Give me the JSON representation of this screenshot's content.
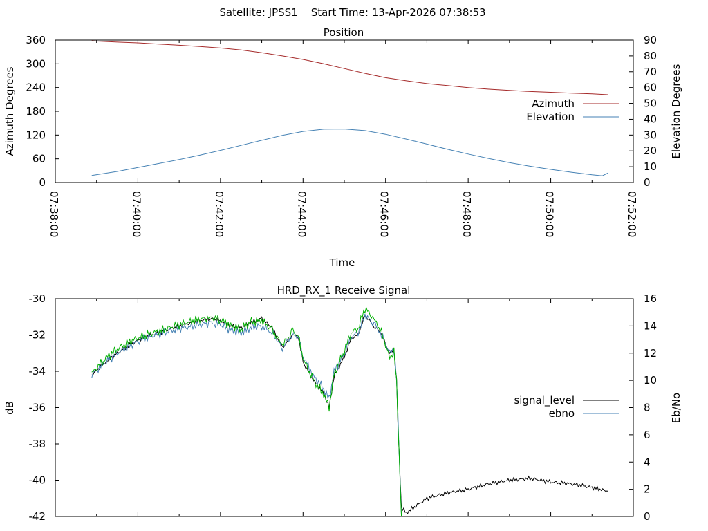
{
  "figure": {
    "header": "Satellite: JPSS1    Start Time: 13-Apr-2026 07:38:53"
  },
  "chart_data": [
    {
      "type": "line",
      "title": "Position",
      "xlabel": "Time",
      "ylabel": "Azimuth Degrees",
      "y2label": "Elevation Degrees",
      "x_type": "time",
      "xlim": [
        "07:38:00",
        "07:52:00"
      ],
      "xticks": [
        "07:38:00",
        "07:40:00",
        "07:42:00",
        "07:44:00",
        "07:46:00",
        "07:48:00",
        "07:50:00",
        "07:52:00"
      ],
      "ylim": [
        0,
        360
      ],
      "yticks": [
        0,
        60,
        120,
        180,
        240,
        300,
        360
      ],
      "y2lim": [
        0,
        90
      ],
      "y2ticks": [
        0,
        10,
        20,
        30,
        40,
        50,
        60,
        70,
        80,
        90
      ],
      "grid": false,
      "legend_position": "right",
      "series": [
        {
          "name": "Azimuth",
          "axis": "y",
          "color": "#a52a2a",
          "x": [
            "07:38:53",
            "07:39:30",
            "07:40:00",
            "07:40:30",
            "07:41:00",
            "07:41:30",
            "07:42:00",
            "07:42:30",
            "07:43:00",
            "07:43:30",
            "07:44:00",
            "07:44:30",
            "07:45:00",
            "07:45:30",
            "07:46:00",
            "07:46:30",
            "07:47:00",
            "07:47:30",
            "07:48:00",
            "07:48:30",
            "07:49:00",
            "07:49:30",
            "07:50:00",
            "07:50:30",
            "07:51:00",
            "07:51:23"
          ],
          "values": [
            358,
            355,
            353,
            350,
            347,
            344,
            340,
            335,
            328,
            320,
            311,
            300,
            288,
            276,
            265,
            257,
            250,
            245,
            240,
            236,
            233,
            230,
            228,
            226,
            224,
            222
          ]
        },
        {
          "name": "Elevation",
          "axis": "y2",
          "color": "#4682b4",
          "x": [
            "07:38:53",
            "07:39:30",
            "07:40:00",
            "07:40:30",
            "07:41:00",
            "07:41:30",
            "07:42:00",
            "07:42:30",
            "07:43:00",
            "07:43:30",
            "07:44:00",
            "07:44:30",
            "07:45:00",
            "07:45:30",
            "07:46:00",
            "07:46:30",
            "07:47:00",
            "07:47:30",
            "07:48:00",
            "07:48:30",
            "07:49:00",
            "07:49:30",
            "07:50:00",
            "07:50:30",
            "07:51:00",
            "07:51:15",
            "07:51:23"
          ],
          "values": [
            4.5,
            7,
            9.5,
            12,
            14.5,
            17.3,
            20.3,
            23.5,
            26.7,
            29.8,
            32.3,
            33.7,
            33.8,
            32.8,
            30.5,
            27.5,
            24.3,
            21,
            18,
            15.2,
            12.6,
            10.3,
            8.3,
            6.5,
            4.9,
            4.3,
            6
          ]
        }
      ]
    },
    {
      "type": "line",
      "title": "HRD_RX_1 Receive Signal",
      "ylabel": "dB",
      "y2label": "Eb/No",
      "x_type": "time",
      "xlim": [
        "07:38:00",
        "07:52:00"
      ],
      "ylim": [
        -42,
        -30
      ],
      "yticks": [
        -42,
        -40,
        -38,
        -36,
        -34,
        -32,
        -30
      ],
      "y2lim": [
        0,
        16
      ],
      "y2ticks": [
        0,
        2,
        4,
        6,
        8,
        10,
        12,
        14,
        16
      ],
      "grid": false,
      "legend_position": "right",
      "series": [
        {
          "name": "signal_level",
          "axis": "y",
          "color": "#000000",
          "x": [
            "07:38:53",
            "07:39:10",
            "07:39:30",
            "07:39:50",
            "07:40:10",
            "07:40:30",
            "07:41:00",
            "07:41:30",
            "07:41:45",
            "07:42:00",
            "07:42:15",
            "07:42:30",
            "07:42:45",
            "07:43:00",
            "07:43:15",
            "07:43:30",
            "07:43:45",
            "07:43:53",
            "07:44:00",
            "07:44:15",
            "07:44:30",
            "07:44:38",
            "07:44:45",
            "07:45:00",
            "07:45:10",
            "07:45:20",
            "07:45:30",
            "07:45:45",
            "07:45:52",
            "07:46:00",
            "07:46:06",
            "07:46:12",
            "07:46:16",
            "07:46:18",
            "07:46:23",
            "07:46:30",
            "07:47:00",
            "07:47:30",
            "07:48:00",
            "07:48:30",
            "07:49:00",
            "07:49:30",
            "07:50:00",
            "07:50:30",
            "07:51:00",
            "07:51:23"
          ],
          "values": [
            -34.2,
            -33.6,
            -33.0,
            -32.5,
            -32.1,
            -31.9,
            -31.5,
            -31.2,
            -31.1,
            -31.2,
            -31.5,
            -31.6,
            -31.3,
            -31.1,
            -31.6,
            -32.7,
            -32.0,
            -32.1,
            -33.5,
            -34.5,
            -35.2,
            -36.0,
            -34.3,
            -33.2,
            -32.2,
            -32.0,
            -30.9,
            -31.6,
            -31.8,
            -32.5,
            -33.0,
            -32.8,
            -34.5,
            -37.0,
            -41.5,
            -41.8,
            -41.0,
            -40.7,
            -40.5,
            -40.2,
            -40.0,
            -39.9,
            -40.1,
            -40.2,
            -40.4,
            -40.6
          ]
        },
        {
          "name": "ebno",
          "axis": "y2",
          "color": "#4682b4",
          "x": [
            "07:38:53",
            "07:39:10",
            "07:39:30",
            "07:39:50",
            "07:40:10",
            "07:40:30",
            "07:41:00",
            "07:41:30",
            "07:41:45",
            "07:42:00",
            "07:42:15",
            "07:42:30",
            "07:42:45",
            "07:43:00",
            "07:43:15",
            "07:43:30",
            "07:43:45",
            "07:43:53",
            "07:44:00",
            "07:44:15",
            "07:44:30",
            "07:44:38",
            "07:44:45",
            "07:45:00",
            "07:45:10",
            "07:45:20",
            "07:45:30",
            "07:45:45",
            "07:45:52",
            "07:46:00",
            "07:46:06",
            "07:46:12",
            "07:46:16",
            "07:46:18",
            "07:46:23"
          ],
          "values": [
            10.4,
            11.2,
            12.0,
            12.6,
            13.1,
            13.4,
            13.8,
            14.1,
            14.2,
            14.1,
            13.7,
            13.5,
            13.9,
            14.0,
            13.5,
            12.4,
            13.4,
            13.2,
            11.8,
            10.3,
            9.4,
            8.6,
            10.6,
            12.0,
            13.2,
            13.5,
            14.8,
            14.0,
            13.5,
            12.7,
            12.0,
            12.3,
            10.0,
            7.3,
            0.0
          ]
        },
        {
          "name": "ebno-green",
          "axis": "y2",
          "color": "#00b000",
          "x": [
            "07:38:53",
            "07:39:10",
            "07:39:30",
            "07:39:50",
            "07:40:10",
            "07:40:30",
            "07:41:00",
            "07:41:30",
            "07:41:45",
            "07:42:00",
            "07:42:15",
            "07:42:30",
            "07:42:45",
            "07:43:00",
            "07:43:15",
            "07:43:30",
            "07:43:45",
            "07:43:53",
            "07:44:00",
            "07:44:15",
            "07:44:30",
            "07:44:38",
            "07:44:45",
            "07:45:00",
            "07:45:10",
            "07:45:20",
            "07:45:30",
            "07:45:45",
            "07:45:52",
            "07:46:00",
            "07:46:06",
            "07:46:12",
            "07:46:16",
            "07:46:18",
            "07:46:23"
          ],
          "values": [
            10.5,
            11.5,
            12.3,
            12.9,
            13.3,
            13.6,
            14.1,
            14.5,
            14.6,
            14.5,
            14.0,
            13.8,
            14.3,
            14.4,
            13.7,
            12.6,
            13.6,
            13.3,
            11.6,
            10.0,
            9.0,
            8.0,
            10.4,
            12.2,
            13.5,
            13.8,
            15.3,
            14.4,
            13.8,
            12.6,
            11.6,
            12.2,
            9.8,
            7.0,
            0.0
          ]
        }
      ]
    }
  ]
}
